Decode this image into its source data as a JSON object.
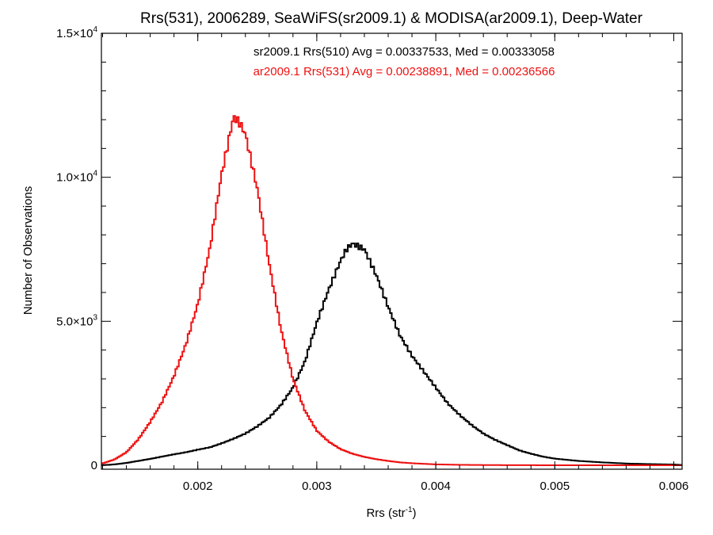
{
  "chart_data": {
    "type": "line",
    "title": "Rrs(531), 2006289, SeaWiFS(sr2009.1) & MODISA(ar2009.1), Deep-Water",
    "xlabel": "Rrs (str",
    "xlabel_sup": "-1",
    "xlabel_end": ")",
    "ylabel": "Number of Observations",
    "xlim": [
      0.00119,
      0.00607
    ],
    "ylim": [
      0,
      15000
    ],
    "xticks": [
      {
        "value": 0.002,
        "label": "0.002"
      },
      {
        "value": 0.003,
        "label": "0.003"
      },
      {
        "value": 0.004,
        "label": "0.004"
      },
      {
        "value": 0.005,
        "label": "0.005"
      },
      {
        "value": 0.006,
        "label": "0.006"
      }
    ],
    "yticks": [
      {
        "value": 0,
        "mant": "0",
        "exp": ""
      },
      {
        "value": 5000,
        "mant": "5.0×10",
        "exp": "3"
      },
      {
        "value": 10000,
        "mant": "1.0×10",
        "exp": "4"
      },
      {
        "value": 15000,
        "mant": "1.5×10",
        "exp": "4"
      }
    ],
    "grid": false,
    "annotations": [
      {
        "text": "sr2009.1 Rrs(510) Avg = 0.00337533, Med = 0.00333058",
        "color": "#000000"
      },
      {
        "text": "ar2009.1 Rrs(531) Avg = 0.00238891, Med = 0.00236566",
        "color": "#ee1111"
      }
    ],
    "series": [
      {
        "color": "#000000",
        "style": "step",
        "x": [
          0.00119,
          0.0013,
          0.0014,
          0.0015,
          0.0016,
          0.0017,
          0.0018,
          0.0019,
          0.002,
          0.0021,
          0.0022,
          0.0023,
          0.0024,
          0.0025,
          0.0026,
          0.0027,
          0.0028,
          0.0029,
          0.003,
          0.0031,
          0.0032,
          0.00325,
          0.0033,
          0.0034,
          0.0035,
          0.0036,
          0.0037,
          0.0038,
          0.0039,
          0.004,
          0.0041,
          0.0042,
          0.0043,
          0.0044,
          0.0045,
          0.0046,
          0.0047,
          0.0048,
          0.0049,
          0.005,
          0.0052,
          0.0054,
          0.0056,
          0.0058,
          0.006,
          0.00607
        ],
        "y": [
          0,
          30,
          80,
          150,
          220,
          300,
          380,
          450,
          540,
          620,
          760,
          920,
          1100,
          1350,
          1650,
          2100,
          2700,
          3600,
          4950,
          6100,
          7100,
          7500,
          7700,
          7500,
          6600,
          5500,
          4500,
          3800,
          3250,
          2700,
          2150,
          1750,
          1400,
          1100,
          880,
          700,
          520,
          400,
          300,
          230,
          150,
          100,
          60,
          40,
          25,
          10
        ]
      },
      {
        "color": "#ee1111",
        "style": "step",
        "x": [
          0.00119,
          0.0013,
          0.0014,
          0.0015,
          0.0016,
          0.0017,
          0.0018,
          0.0019,
          0.002,
          0.0021,
          0.0022,
          0.0023,
          0.00235,
          0.0024,
          0.0025,
          0.0026,
          0.0027,
          0.0028,
          0.0029,
          0.003,
          0.0031,
          0.0032,
          0.0033,
          0.0034,
          0.0035,
          0.0036,
          0.0037,
          0.0038,
          0.0039,
          0.004,
          0.0042,
          0.0044,
          0.0046,
          0.0048,
          0.005,
          0.0055,
          0.006,
          0.00607
        ],
        "y": [
          50,
          200,
          450,
          900,
          1500,
          2200,
          3100,
          4200,
          5600,
          7500,
          10100,
          12100,
          11900,
          11500,
          9600,
          7000,
          4700,
          3000,
          1900,
          1200,
          820,
          560,
          400,
          290,
          210,
          150,
          100,
          70,
          50,
          30,
          15,
          8,
          4,
          2,
          1,
          0,
          0,
          0
        ]
      }
    ]
  }
}
